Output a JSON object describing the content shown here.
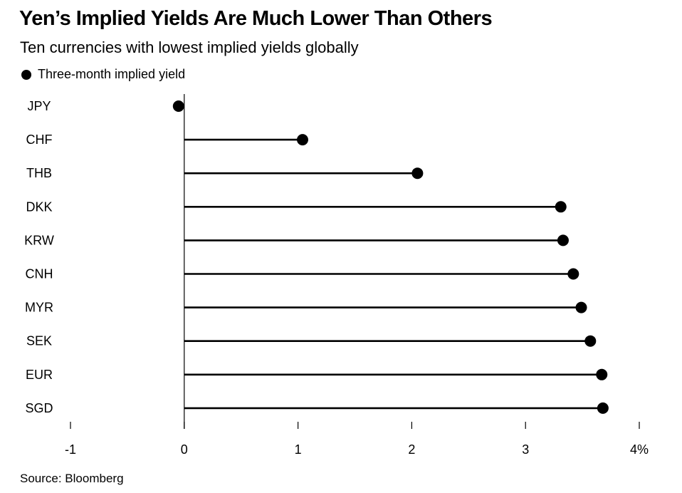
{
  "chart_data": {
    "type": "lollipop",
    "title": "Yen’s Implied Yields Are Much Lower Than Others",
    "subtitle": "Ten currencies with lowest implied yields globally",
    "legend": [
      {
        "name": "Three-month implied yield",
        "color": "#000000"
      }
    ],
    "legend_placement": "top-left",
    "categories": [
      "JPY",
      "CHF",
      "THB",
      "DKK",
      "KRW",
      "CNH",
      "MYR",
      "SEK",
      "EUR",
      "SGD"
    ],
    "series": [
      {
        "name": "Three-month implied yield",
        "values": [
          -0.05,
          1.04,
          2.05,
          3.31,
          3.33,
          3.42,
          3.49,
          3.57,
          3.67,
          3.68
        ]
      }
    ],
    "xlim": [
      -1,
      4
    ],
    "x_ticks": [
      -1,
      0,
      1,
      2,
      3,
      4
    ],
    "x_tick_labels": [
      "-1",
      "0",
      "1",
      "2",
      "3",
      "4%"
    ],
    "xlabel": "",
    "ylabel": "",
    "grid": false,
    "source": "Source: Bloomberg"
  }
}
